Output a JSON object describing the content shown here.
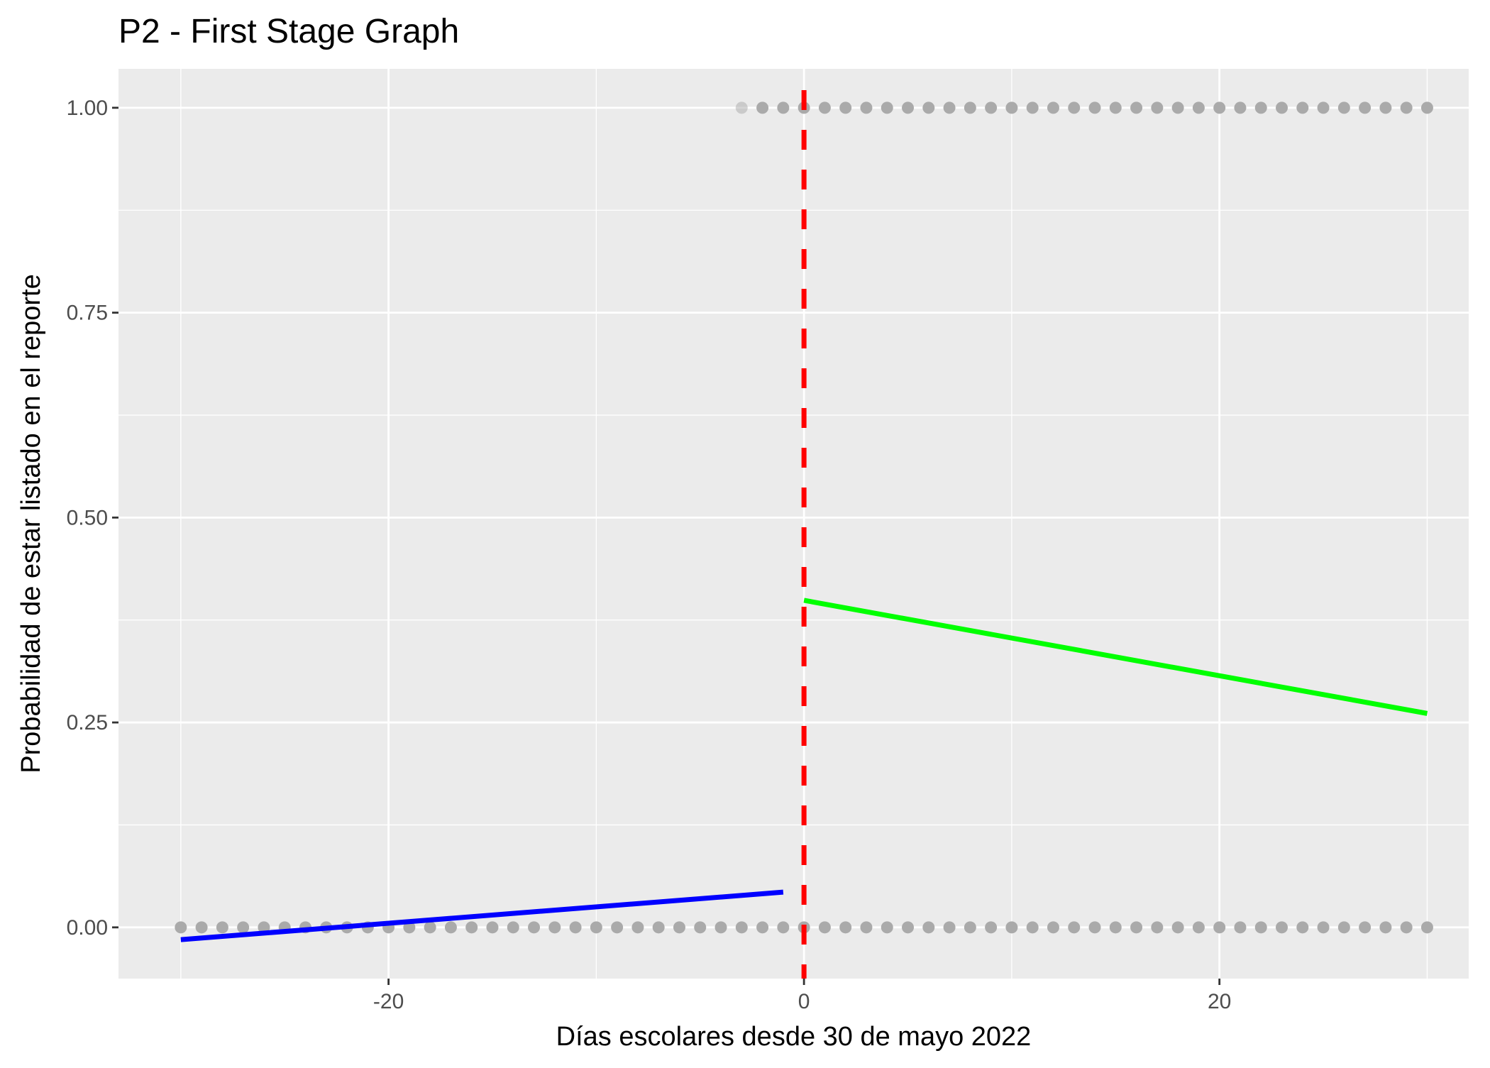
{
  "chart_data": {
    "type": "scatter",
    "title": "P2 - First Stage Graph",
    "xlabel": "Días escolares desde 30 de mayo 2022",
    "ylabel": "Probabilidad de estar listado en el reporte",
    "xlim": [
      -33,
      32
    ],
    "ylim": [
      -0.0625,
      1.0475
    ],
    "x_ticks": [
      {
        "value": -20,
        "label": "-20"
      },
      {
        "value": 0,
        "label": "0"
      },
      {
        "value": 20,
        "label": "20"
      }
    ],
    "x_minor_ticks": [
      -30,
      -10,
      10,
      30
    ],
    "y_ticks": [
      {
        "value": 0,
        "label": "0.00"
      },
      {
        "value": 0.25,
        "label": "0.25"
      },
      {
        "value": 0.5,
        "label": "0.50"
      },
      {
        "value": 0.75,
        "label": "0.75"
      },
      {
        "value": 1,
        "label": "1.00"
      }
    ],
    "y_minor_ticks": [
      0.125,
      0.375,
      0.625,
      0.875
    ],
    "grid": true,
    "legend": "none",
    "point_color": "#aaaaaa",
    "points_zero": [
      -30,
      -29,
      -28,
      -27,
      -26,
      -25,
      -24,
      -23,
      -22,
      -21,
      -20,
      -19,
      -18,
      -17,
      -16,
      -15,
      -14,
      -13,
      -12,
      -11,
      -10,
      -9,
      -8,
      -7,
      -6,
      -5,
      -4,
      -3,
      -2,
      -1,
      0,
      1,
      2,
      3,
      4,
      5,
      6,
      7,
      8,
      9,
      10,
      11,
      12,
      13,
      14,
      15,
      16,
      17,
      18,
      19,
      20,
      21,
      22,
      23,
      24,
      25,
      26,
      27,
      28,
      29,
      30
    ],
    "points_one": [
      -3,
      -2,
      -1,
      0,
      1,
      2,
      3,
      4,
      5,
      6,
      7,
      8,
      9,
      10,
      11,
      12,
      13,
      14,
      15,
      16,
      17,
      18,
      19,
      20,
      21,
      22,
      23,
      24,
      25,
      26,
      27,
      28,
      29,
      30
    ],
    "fit_lines": [
      {
        "x": [
          -30,
          -1
        ],
        "y": [
          -0.015,
          0.043
        ],
        "color": "#0000ff"
      },
      {
        "x": [
          0,
          30
        ],
        "y": [
          0.399,
          0.261
        ],
        "color": "#00ff00"
      }
    ],
    "cutoff": {
      "x": 0,
      "color": "#ff0000",
      "style": "dashed"
    }
  }
}
